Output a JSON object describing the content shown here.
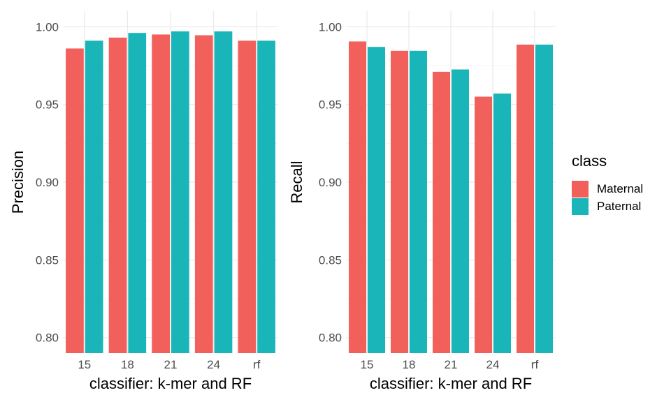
{
  "chart_data": [
    {
      "type": "bar",
      "categories": [
        "15",
        "18",
        "21",
        "24",
        "rf"
      ],
      "series": [
        {
          "name": "Maternal",
          "values": [
            0.986,
            0.993,
            0.995,
            0.9945,
            0.991
          ]
        },
        {
          "name": "Paternal",
          "values": [
            0.991,
            0.996,
            0.997,
            0.997,
            0.991
          ]
        }
      ],
      "xlabel": "classifier: k-mer and RF",
      "ylabel": "Precision",
      "ylim": [
        0.79,
        1.01
      ],
      "yticks": [
        0.8,
        0.85,
        0.9,
        0.95,
        1.0
      ],
      "ytick_labels": [
        "0.80",
        "0.85",
        "0.90",
        "0.95",
        "1.00"
      ],
      "grid": true
    },
    {
      "type": "bar",
      "categories": [
        "15",
        "18",
        "21",
        "24",
        "rf"
      ],
      "series": [
        {
          "name": "Maternal",
          "values": [
            0.9905,
            0.9845,
            0.971,
            0.955,
            0.9885
          ]
        },
        {
          "name": "Paternal",
          "values": [
            0.987,
            0.9845,
            0.9725,
            0.957,
            0.9885
          ]
        }
      ],
      "xlabel": "classifier: k-mer and RF",
      "ylabel": "Recall",
      "ylim": [
        0.79,
        1.01
      ],
      "yticks": [
        0.8,
        0.85,
        0.9,
        0.95,
        1.0
      ],
      "ytick_labels": [
        "0.80",
        "0.85",
        "0.90",
        "0.95",
        "1.00"
      ],
      "grid": true
    }
  ],
  "legend": {
    "title": "class",
    "items": [
      {
        "label": "Maternal",
        "color": "#F8766D"
      },
      {
        "label": "Paternal",
        "color": "#00BFC4"
      }
    ],
    "position": "right"
  },
  "colors": {
    "Maternal": "#F2605B",
    "Paternal": "#1AB5B8",
    "grid": "#EBEBEB"
  }
}
